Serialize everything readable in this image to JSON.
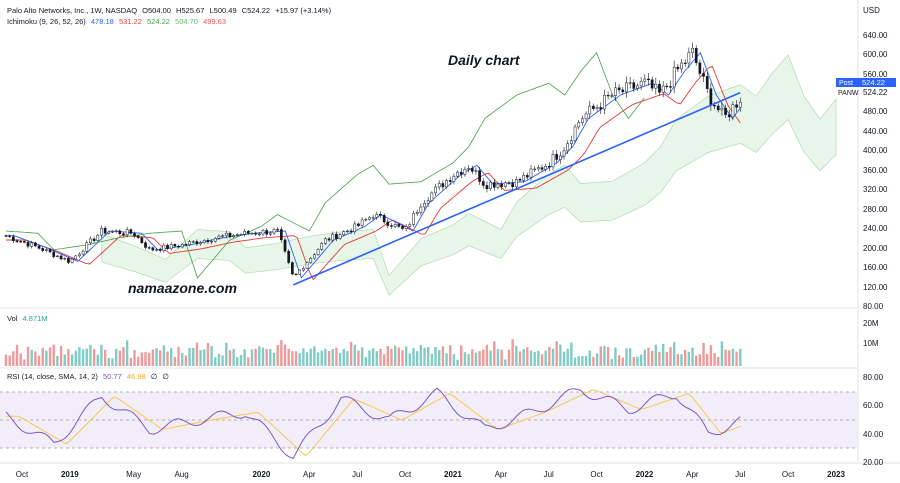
{
  "header": {
    "title": "Palo Alto Networks, Inc., 1W, NASDAQ",
    "ohlc": [
      {
        "key": "O",
        "value": "504.00"
      },
      {
        "key": "H",
        "value": "525.67"
      },
      {
        "key": "L",
        "value": "500.49"
      },
      {
        "key": "C",
        "value": "524.22"
      }
    ],
    "change": "+15.97 (+3.14%)"
  },
  "ichimoku_legend": {
    "label": "Ichimoku (9, 26, 52, 26)",
    "values": [
      {
        "value": "478.18",
        "color": "#2962ff"
      },
      {
        "value": "531.22",
        "color": "#e53935"
      },
      {
        "value": "524.22",
        "color": "#43a047"
      },
      {
        "value": "504.70",
        "color": "#66bb6a"
      },
      {
        "value": "499.63",
        "color": "#ef5350"
      }
    ]
  },
  "annotations": {
    "chart_label": "Daily chart",
    "watermark": "namaazone.com"
  },
  "price_axis": {
    "currency": "USD",
    "ticks": [
      "640.00",
      "600.00",
      "560.00",
      "524.22",
      "480.00",
      "440.00",
      "400.00",
      "360.00",
      "320.00",
      "280.00",
      "240.00",
      "200.00",
      "160.00",
      "120.00",
      "80.00"
    ],
    "post_label": "Post",
    "post_value": "524.22",
    "symbol": "PANW"
  },
  "volume_pane": {
    "label": "Vol",
    "value": "4.871M",
    "ticks": [
      "20M",
      "10M"
    ]
  },
  "rsi_pane": {
    "label": "RSI (14, close, SMA, 14, 2)",
    "value1": "50.77",
    "value2": "46.98",
    "value3": "∅",
    "value4": "∅",
    "ticks": [
      "80.00",
      "60.00",
      "40.00",
      "20.00"
    ]
  },
  "time_axis": {
    "ticks": [
      "Oct",
      "2019",
      "May",
      "Aug",
      "2020",
      "Apr",
      "Jul",
      "Oct",
      "2021",
      "Apr",
      "Jul",
      "Oct",
      "2022",
      "Apr",
      "Jul",
      "Oct",
      "2023"
    ]
  },
  "colors": {
    "up": "#26a69a",
    "down": "#ef5350",
    "candle_body": "#131722",
    "tenkan": "#2962ff",
    "kijun": "#e53935",
    "chikou": "#43a047",
    "cloud": "#e8f5e9",
    "cloud_red": "#ffcdd2",
    "trendline": "#2962ff",
    "rsi": "#7e57c2",
    "rsi_ma": "#f9c74f",
    "rsi_band": "#ede7f6"
  },
  "chart_data": {
    "type": "candlestick",
    "interval": "1W",
    "ylim": [
      80,
      660
    ],
    "x_range": [
      "2018-09",
      "2023-02"
    ],
    "trendline": [
      {
        "x": "2020-03",
        "y": 125
      },
      {
        "x": "2022-07",
        "y": 535
      }
    ],
    "price_path": [
      {
        "x": "2018-09",
        "y": 230
      },
      {
        "x": "2018-11",
        "y": 205
      },
      {
        "x": "2019-01",
        "y": 175
      },
      {
        "x": "2019-03",
        "y": 240
      },
      {
        "x": "2019-05",
        "y": 235
      },
      {
        "x": "2019-06",
        "y": 200
      },
      {
        "x": "2019-08",
        "y": 210
      },
      {
        "x": "2019-10",
        "y": 225
      },
      {
        "x": "2019-12",
        "y": 235
      },
      {
        "x": "2020-02",
        "y": 240
      },
      {
        "x": "2020-03",
        "y": 140
      },
      {
        "x": "2020-05",
        "y": 220
      },
      {
        "x": "2020-07",
        "y": 250
      },
      {
        "x": "2020-08",
        "y": 275
      },
      {
        "x": "2020-10",
        "y": 240
      },
      {
        "x": "2020-11",
        "y": 300
      },
      {
        "x": "2021-01",
        "y": 360
      },
      {
        "x": "2021-02",
        "y": 380
      },
      {
        "x": "2021-03",
        "y": 340
      },
      {
        "x": "2021-05",
        "y": 345
      },
      {
        "x": "2021-07",
        "y": 385
      },
      {
        "x": "2021-08",
        "y": 420
      },
      {
        "x": "2021-09",
        "y": 480
      },
      {
        "x": "2021-11",
        "y": 530
      },
      {
        "x": "2022-01",
        "y": 555
      },
      {
        "x": "2022-02",
        "y": 530
      },
      {
        "x": "2022-03",
        "y": 580
      },
      {
        "x": "2022-04",
        "y": 620
      },
      {
        "x": "2022-05",
        "y": 530
      },
      {
        "x": "2022-06",
        "y": 480
      },
      {
        "x": "2022-07",
        "y": 524
      }
    ],
    "volume_max_label": "20M",
    "rsi_ylim": [
      20,
      85
    ],
    "rsi_path": [
      {
        "x": "2018-09",
        "y": 55
      },
      {
        "x": "2018-12",
        "y": 34
      },
      {
        "x": "2019-03",
        "y": 70
      },
      {
        "x": "2019-06",
        "y": 45
      },
      {
        "x": "2019-09",
        "y": 52
      },
      {
        "x": "2019-12",
        "y": 58
      },
      {
        "x": "2020-03",
        "y": 25
      },
      {
        "x": "2020-06",
        "y": 68
      },
      {
        "x": "2020-09",
        "y": 52
      },
      {
        "x": "2020-12",
        "y": 72
      },
      {
        "x": "2021-03",
        "y": 45
      },
      {
        "x": "2021-06",
        "y": 58
      },
      {
        "x": "2021-09",
        "y": 75
      },
      {
        "x": "2021-12",
        "y": 60
      },
      {
        "x": "2022-03",
        "y": 72
      },
      {
        "x": "2022-05",
        "y": 42
      },
      {
        "x": "2022-07",
        "y": 51
      }
    ]
  }
}
